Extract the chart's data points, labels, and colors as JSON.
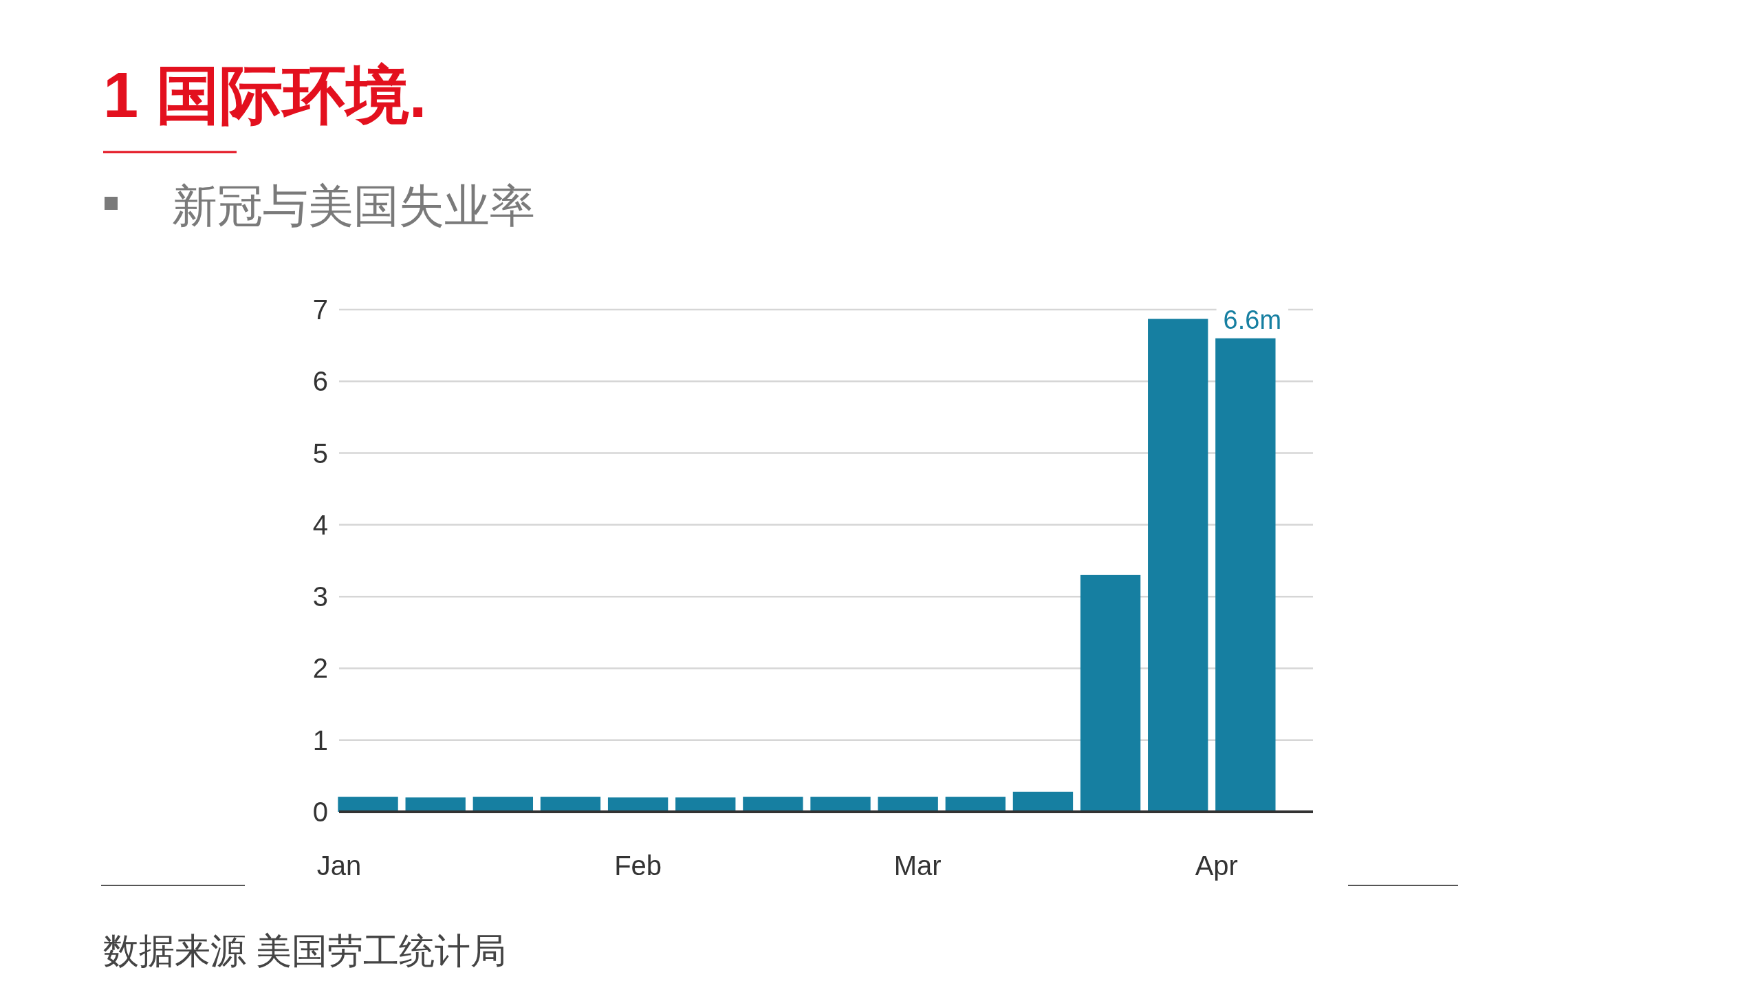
{
  "chart_data": {
    "type": "bar",
    "title": "1 国际环境.",
    "subtitle": "新冠与美国失业率",
    "annotations": [
      "数据来源 美国劳工统计局"
    ],
    "x": [
      "--01-04",
      "--01-11",
      "--01-18",
      "--01-25",
      "--02-01",
      "--02-08",
      "--02-15",
      "--02-22",
      "--02-29",
      "--03-07",
      "--03-14",
      "--03-21",
      "--03-28",
      "--04-04"
    ],
    "values": [
      0.21,
      0.2,
      0.21,
      0.21,
      0.2,
      0.2,
      0.21,
      0.21,
      0.21,
      0.21,
      0.28,
      3.3,
      6.87,
      6.6
    ],
    "value_labels": [
      null,
      null,
      null,
      null,
      null,
      null,
      null,
      null,
      null,
      null,
      null,
      null,
      null,
      "6.6m"
    ],
    "color": "#167fa1",
    "xlim": [
      "--01-01",
      "--04-11"
    ],
    "xticks": [
      {
        "value": "--01-01",
        "label": "Jan"
      },
      {
        "value": "--02-01",
        "label": "Feb"
      },
      {
        "value": "--03-01",
        "label": "Mar"
      },
      {
        "value": "--04-01",
        "label": "Apr"
      }
    ],
    "ylim": [
      0,
      7
    ],
    "yticks": [
      0,
      1,
      2,
      3,
      4,
      5,
      6,
      7
    ],
    "grid": "y"
  }
}
